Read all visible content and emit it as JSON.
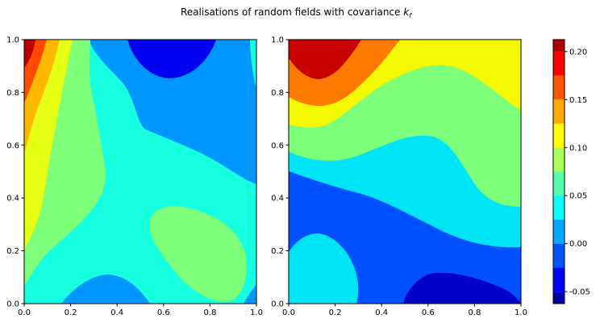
{
  "figure": {
    "title": "Realisations of random fields with covariance ",
    "title_math": "k",
    "title_math_sub": "f"
  },
  "chart_data": [
    {
      "type": "contour",
      "name": "",
      "x_range": [
        0,
        1
      ],
      "y_range": [
        0,
        1
      ],
      "xticks": [
        "0.0",
        "0.2",
        "0.4",
        "0.6",
        "0.8",
        "1.0"
      ],
      "yticks": [
        "0.0",
        "0.2",
        "0.4",
        "0.6",
        "0.8",
        "1.0"
      ],
      "xtick_values": [
        0,
        0.2,
        0.4,
        0.6,
        0.8,
        1.0
      ],
      "ytick_values": [
        0,
        0.2,
        0.4,
        0.6,
        0.8,
        1.0
      ],
      "levels": [
        -0.075,
        -0.05,
        -0.025,
        0.0,
        0.025,
        0.05,
        0.075,
        0.1,
        0.125,
        0.15,
        0.175,
        0.2
      ],
      "bands": [
        {
          "level": 0.0,
          "color": "#0000f1"
        },
        {
          "level": 0.025,
          "color": "#0096ff"
        },
        {
          "level": 0.05,
          "color": "#16ffe1"
        },
        {
          "level": 0.075,
          "color": "#7dff7a"
        },
        {
          "level": 0.1,
          "color": "#e4ff13"
        },
        {
          "level": 0.125,
          "color": "#ffb900"
        },
        {
          "level": 0.15,
          "color": "#ff4a00"
        },
        {
          "level": 0.2,
          "color": "#b80000"
        }
      ]
    },
    {
      "type": "contour",
      "name": "",
      "x_range": [
        0,
        1
      ],
      "y_range": [
        0,
        1
      ],
      "xticks": [
        "0.0",
        "0.2",
        "0.4",
        "0.6",
        "0.8",
        "1.0"
      ],
      "yticks": [
        "0.0",
        "0.2",
        "0.4",
        "0.6",
        "0.8",
        "1.0"
      ],
      "xtick_values": [
        0,
        0.2,
        0.4,
        0.6,
        0.8,
        1.0
      ],
      "ytick_values": [
        0,
        0.2,
        0.4,
        0.6,
        0.8,
        1.0
      ],
      "bands": [
        {
          "level": -0.025,
          "color": "#0000c8"
        },
        {
          "level": 0.0,
          "color": "#0050ff"
        },
        {
          "level": 0.025,
          "color": "#00e4f8"
        },
        {
          "level": 0.05,
          "color": "#7dff7a"
        },
        {
          "level": 0.075,
          "color": "#f4f802"
        },
        {
          "level": 0.1,
          "color": "#ff7a00"
        },
        {
          "level": 0.125,
          "color": "#c80000"
        }
      ]
    }
  ],
  "colorbar": {
    "cmap": "jet",
    "vmin": -0.0625,
    "vmax": 0.2125,
    "ticks": [
      "-0.05",
      "0.00",
      "0.05",
      "0.10",
      "0.15",
      "0.20"
    ],
    "tick_values": [
      -0.05,
      0.0,
      0.05,
      0.1,
      0.15,
      0.2
    ],
    "levels": [
      -0.075,
      -0.05,
      -0.025,
      0.0,
      0.025,
      0.05,
      0.075,
      0.1,
      0.125,
      0.15,
      0.175,
      0.2,
      0.225
    ]
  }
}
